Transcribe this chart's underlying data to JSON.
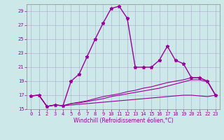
{
  "title": "",
  "xlabel": "Windchill (Refroidissement éolien,°C)",
  "ylabel": "",
  "background_color": "#cce8e8",
  "grid_color": "#aaaacc",
  "line_color": "#990099",
  "xlim": [
    -0.5,
    23.5
  ],
  "ylim": [
    15,
    30
  ],
  "yticks": [
    15,
    17,
    19,
    21,
    23,
    25,
    27,
    29
  ],
  "xticks": [
    0,
    1,
    2,
    3,
    4,
    5,
    6,
    7,
    8,
    9,
    10,
    11,
    12,
    13,
    14,
    15,
    16,
    17,
    18,
    19,
    20,
    21,
    22,
    23
  ],
  "lines": [
    {
      "x": [
        0,
        1,
        2,
        3,
        4,
        5,
        6,
        7,
        8,
        9,
        10,
        11,
        12,
        13,
        14,
        15,
        16,
        17,
        18,
        19,
        20,
        21,
        22,
        23
      ],
      "y": [
        16.9,
        17.0,
        15.4,
        15.6,
        15.5,
        19.0,
        20.0,
        22.5,
        25.0,
        27.3,
        29.4,
        29.7,
        28.0,
        21.0,
        21.0,
        21.0,
        22.0,
        24.0,
        22.0,
        21.5,
        19.5,
        19.5,
        19.0,
        17.0
      ],
      "marker": "*",
      "markersize": 3.5,
      "linewidth": 1.0
    },
    {
      "x": [
        0,
        1,
        2,
        3,
        4,
        5,
        6,
        7,
        8,
        9,
        10,
        11,
        12,
        13,
        14,
        15,
        16,
        17,
        18,
        19,
        20,
        21,
        22,
        23
      ],
      "y": [
        16.9,
        17.0,
        15.4,
        15.6,
        15.5,
        15.8,
        16.0,
        16.2,
        16.5,
        16.8,
        17.0,
        17.2,
        17.5,
        17.7,
        18.0,
        18.2,
        18.5,
        18.8,
        19.0,
        19.2,
        19.5,
        19.5,
        19.0,
        17.0
      ],
      "marker": null,
      "markersize": 0,
      "linewidth": 0.8
    },
    {
      "x": [
        0,
        1,
        2,
        3,
        4,
        5,
        6,
        7,
        8,
        9,
        10,
        11,
        12,
        13,
        14,
        15,
        16,
        17,
        18,
        19,
        20,
        21,
        22,
        23
      ],
      "y": [
        16.9,
        17.0,
        15.4,
        15.6,
        15.5,
        15.8,
        15.9,
        16.1,
        16.3,
        16.5,
        16.8,
        17.0,
        17.2,
        17.4,
        17.6,
        17.8,
        18.0,
        18.3,
        18.6,
        18.9,
        19.2,
        19.2,
        18.9,
        17.0
      ],
      "marker": null,
      "markersize": 0,
      "linewidth": 0.8
    },
    {
      "x": [
        0,
        1,
        2,
        3,
        4,
        5,
        6,
        7,
        8,
        9,
        10,
        11,
        12,
        13,
        14,
        15,
        16,
        17,
        18,
        19,
        20,
        21,
        22,
        23
      ],
      "y": [
        16.9,
        17.0,
        15.4,
        15.6,
        15.5,
        15.6,
        15.7,
        15.8,
        15.9,
        16.0,
        16.1,
        16.2,
        16.3,
        16.4,
        16.5,
        16.6,
        16.7,
        16.8,
        16.9,
        17.0,
        17.0,
        16.9,
        16.8,
        17.0
      ],
      "marker": null,
      "markersize": 0,
      "linewidth": 0.8
    }
  ],
  "tick_fontsize": 5.0,
  "xlabel_fontsize": 5.5,
  "figsize": [
    3.2,
    2.0
  ],
  "dpi": 100
}
